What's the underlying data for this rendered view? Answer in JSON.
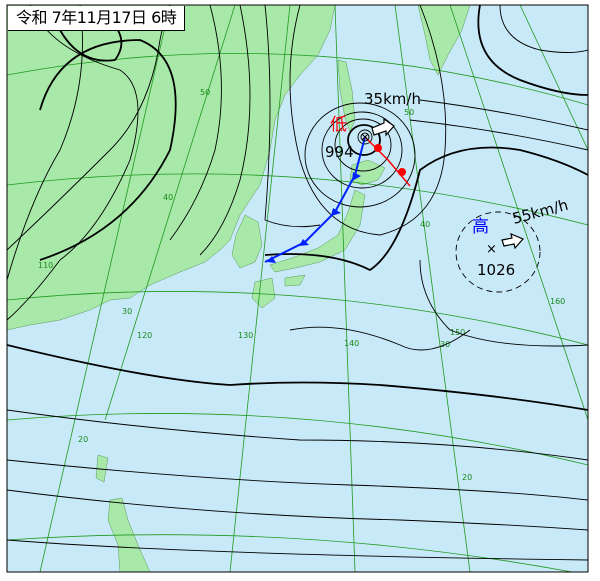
{
  "title": "令和 7年11月17日 6時",
  "colors": {
    "ocean": "#c8e9f7",
    "land": "#a8e8a8",
    "grid": "#1f9a1f",
    "isobar": "#000000",
    "cold_front": "#0022ff",
    "warm_front": "#ff0000",
    "low_label": "#ff0000",
    "high_label": "#0000ff"
  },
  "low": {
    "symbol": "低",
    "pressure": "994",
    "speed": "35km/h",
    "mark": "cross-circle"
  },
  "high": {
    "symbol": "高",
    "pressure": "1026",
    "speed": "55km/h",
    "mark": "×"
  },
  "grid_labels": {
    "lat_west": [
      "50",
      "40",
      "30",
      "20"
    ],
    "lat_east": [
      "50",
      "40",
      "30",
      "20"
    ],
    "lon": [
      "110",
      "120",
      "130",
      "140",
      "150",
      "160"
    ]
  }
}
